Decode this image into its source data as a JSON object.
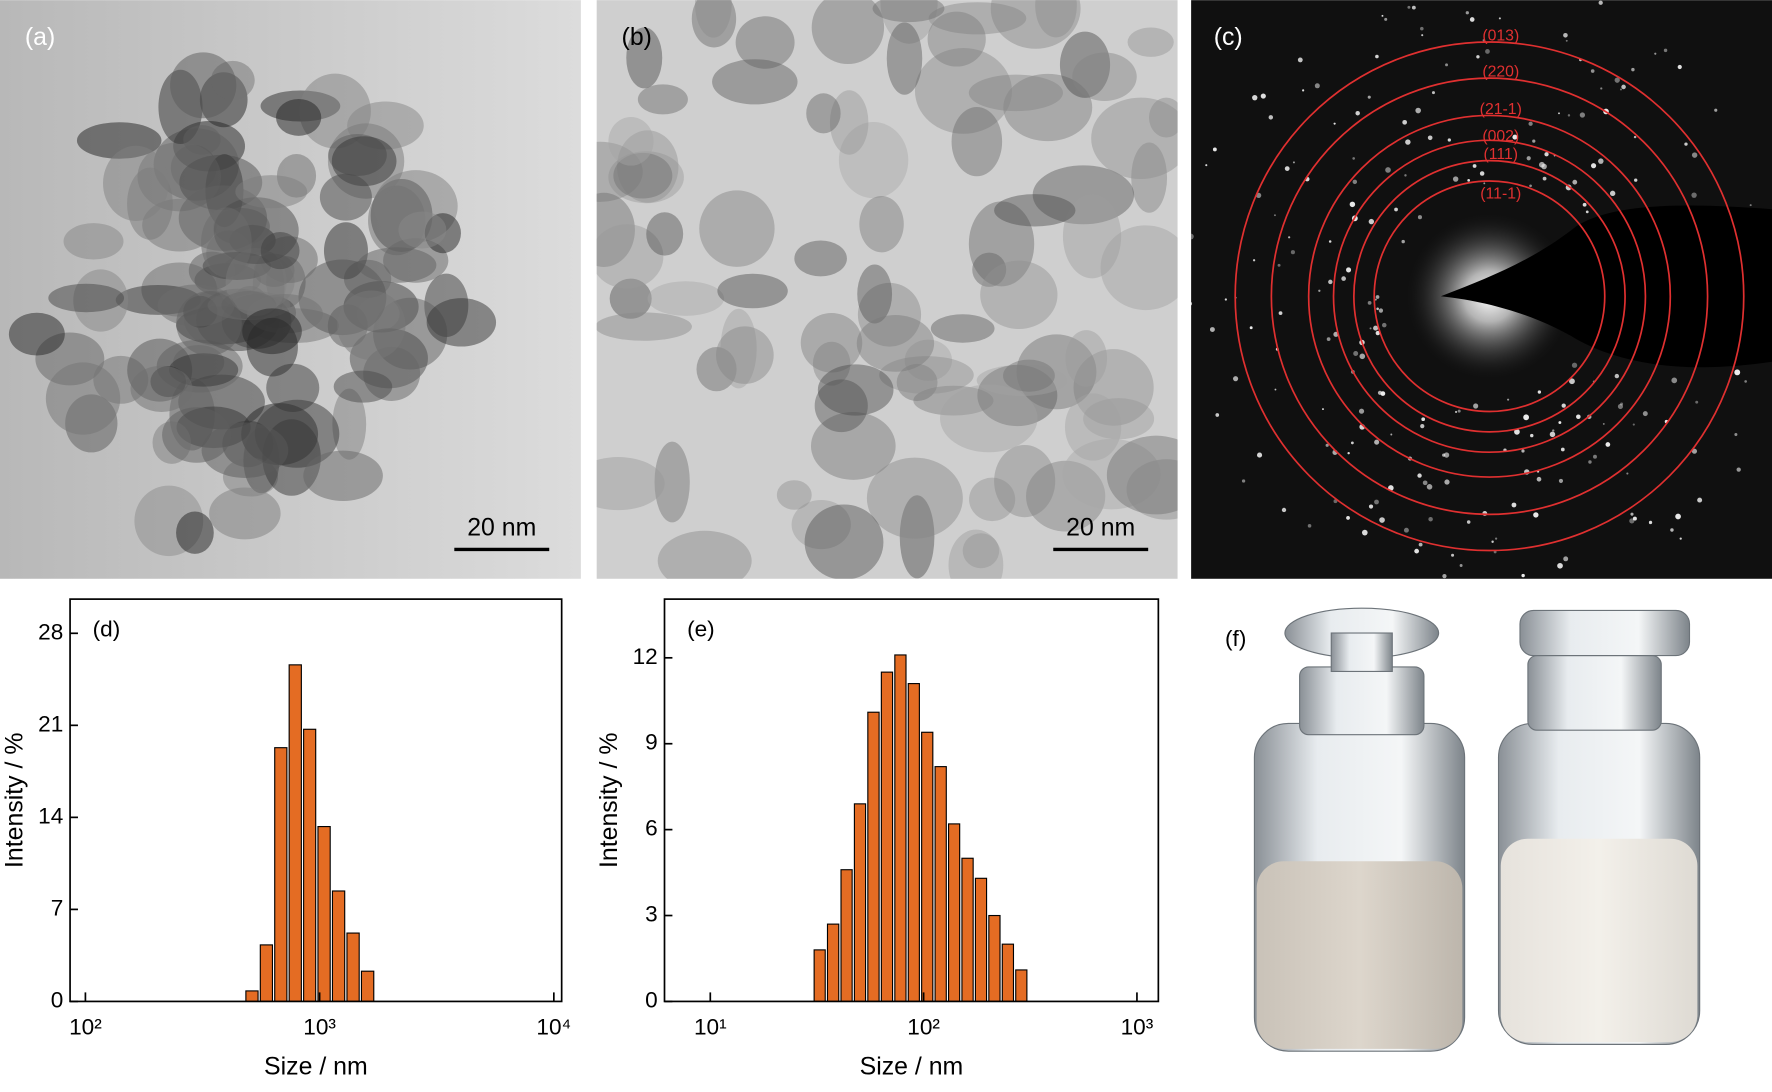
{
  "panels": {
    "a": {
      "label": "(a)",
      "scale_bar": "20 nm"
    },
    "b": {
      "label": "(b)",
      "scale_bar": "20 nm"
    },
    "c": {
      "label": "(c)",
      "rings": [
        "(013)",
        "(220)",
        "(21-1)",
        "(002)",
        "(111)",
        "(11-1)"
      ]
    },
    "f": {
      "label": "(f)"
    }
  },
  "chart_data": [
    {
      "type": "histogram",
      "annotation": "(d)",
      "x_label": "Size / nm",
      "y_label": "Intensity / %",
      "log_x": true,
      "color": "#e46c23",
      "bins": [
        479,
        552,
        636,
        733,
        845,
        973,
        1122,
        1294,
        1492,
        1722
      ],
      "values": [
        0.8,
        4.3,
        19.3,
        25.6,
        20.7,
        13.3,
        8.4,
        5.2,
        2.3
      ],
      "xlim": [
        86,
        10800
      ],
      "xticks": [
        {
          "value": 100,
          "label": "10²"
        },
        {
          "value": 1000,
          "label": "10³"
        },
        {
          "value": 10000,
          "label": "10⁴"
        }
      ],
      "ylim": [
        0,
        30.6
      ],
      "yticks": [
        0,
        7,
        14,
        21,
        28
      ]
    },
    {
      "type": "histogram",
      "annotation": "(e)",
      "x_label": "Size / nm",
      "y_label": "Intensity / %",
      "log_x": true,
      "color": "#e46c23",
      "bins": [
        30.3,
        35.0,
        40.5,
        46.8,
        54.1,
        62.6,
        72.4,
        83.7,
        96.7,
        111.8,
        129.3,
        149.4,
        172.8,
        199.7,
        230.9,
        267.0,
        308.6
      ],
      "values": [
        1.8,
        2.7,
        4.6,
        6.9,
        10.1,
        11.5,
        12.1,
        11.1,
        9.4,
        8.2,
        6.2,
        5.0,
        4.3,
        3.0,
        2.0,
        1.1
      ],
      "xlim": [
        6.1,
        1260
      ],
      "xticks": [
        {
          "value": 10,
          "label": "10¹"
        },
        {
          "value": 100,
          "label": "10²"
        },
        {
          "value": 1000,
          "label": "10³"
        }
      ],
      "ylim": [
        0,
        14.05
      ],
      "yticks": [
        0,
        3,
        6,
        9,
        12
      ]
    }
  ]
}
